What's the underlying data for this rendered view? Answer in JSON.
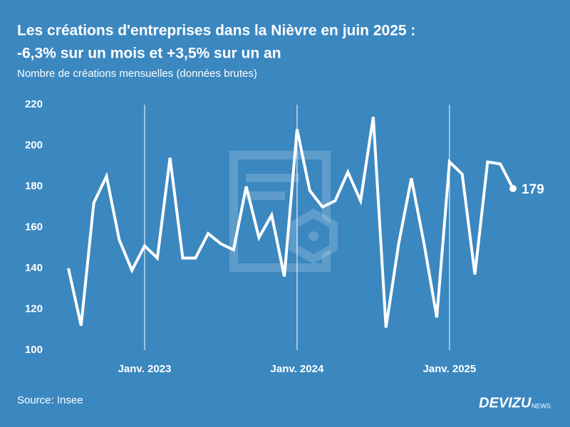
{
  "chart_data": {
    "type": "line",
    "title": [
      "Les créations d'entreprises dans la Nièvre en juin 2025 :",
      "-6,3% sur un mois et +3,5% sur un an"
    ],
    "subtitle": "Nombre de créations mensuelles (données brutes)",
    "x": [
      "2022-07",
      "2022-08",
      "2022-09",
      "2022-10",
      "2022-11",
      "2022-12",
      "2023-01",
      "2023-02",
      "2023-03",
      "2023-04",
      "2023-05",
      "2023-06",
      "2023-07",
      "2023-08",
      "2023-09",
      "2023-10",
      "2023-11",
      "2023-12",
      "2024-01",
      "2024-02",
      "2024-03",
      "2024-04",
      "2024-05",
      "2024-06",
      "2024-07",
      "2024-08",
      "2024-09",
      "2024-10",
      "2024-11",
      "2024-12",
      "2025-01",
      "2025-02",
      "2025-03",
      "2025-04",
      "2025-05",
      "2025-06"
    ],
    "series": [
      {
        "name": "Créations",
        "color": "#ffffff",
        "values": [
          140,
          112,
          172,
          185,
          154,
          139,
          151,
          145,
          194,
          145,
          145,
          157,
          152,
          149,
          180,
          155,
          166,
          136,
          208,
          178,
          170,
          173,
          187,
          173,
          214,
          111,
          152,
          184,
          152,
          116,
          192,
          186,
          137,
          192,
          191,
          179
        ]
      }
    ],
    "xlim": [
      "2022-07",
      "2025-06"
    ],
    "xticks": [
      {
        "value": "2023-01",
        "label": "Janv. 2023"
      },
      {
        "value": "2024-01",
        "label": "Janv. 2024"
      },
      {
        "value": "2025-01",
        "label": "Janv. 2025"
      }
    ],
    "ylim": [
      100,
      220
    ],
    "yticks": [
      100,
      120,
      140,
      160,
      180,
      200,
      220
    ],
    "grid": "x",
    "source": "Source: Insee",
    "brand": "DEVIZU",
    "brand_suffix": "NEWS"
  }
}
